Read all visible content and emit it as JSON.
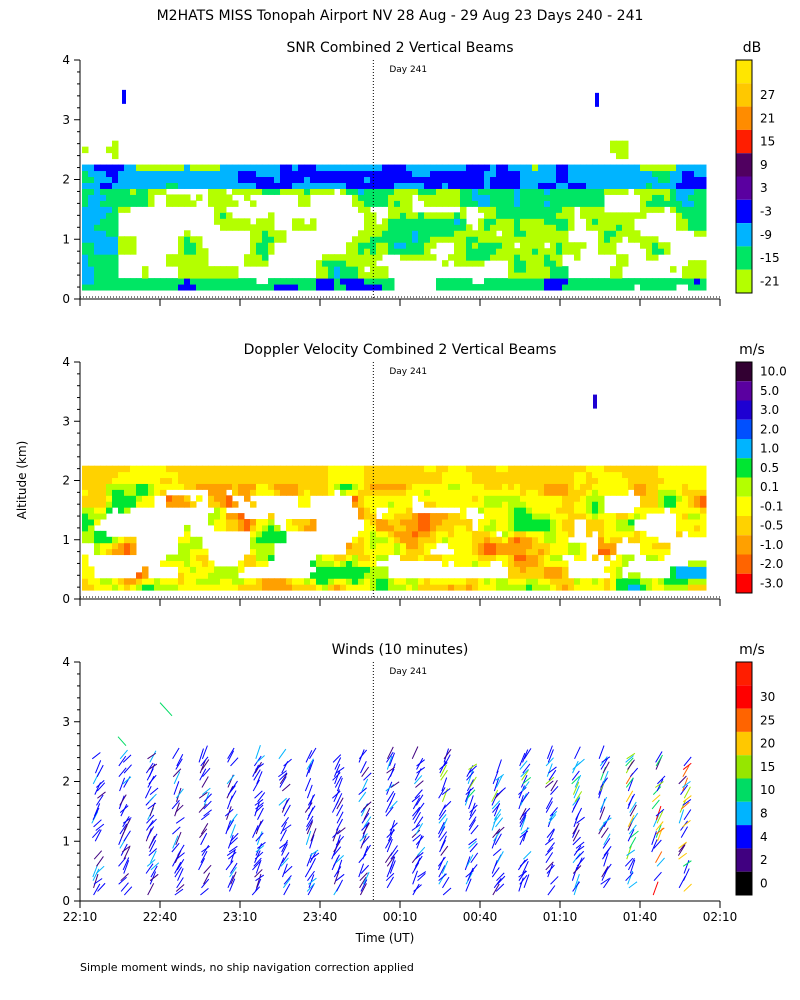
{
  "page": {
    "title": "M2HATS MISS Tonopah Airport NV  28 Aug - 29 Aug 23 Days 240 - 241",
    "y_axis_label": "Altitude (km)",
    "x_axis_label": "Time (UT)",
    "footnote": "Simple moment winds, no ship navigation correction applied",
    "day_marker_label": "Day 241"
  },
  "chart_data": [
    {
      "type": "heatmap",
      "title": "SNR Combined 2 Vertical Beams",
      "units": "dB",
      "ylabel": "Altitude (km)",
      "yticks": [
        "0",
        "1",
        "2",
        "3",
        "4"
      ],
      "ylim": [
        0,
        4
      ],
      "x_start": "22:10",
      "x_end": "02:10",
      "day_boundary": "00:00",
      "colorbar_labels": [
        "27",
        "21",
        "15",
        "9",
        "3",
        "-3",
        "-9",
        "-15",
        "-21"
      ],
      "colorbar_colors": [
        "#ffc800",
        "#ff8c00",
        "#ff1e00",
        "#500060",
        "#5a00a0",
        "#0000ff",
        "#00b4ff",
        "#00e664",
        "#b4ff00"
      ],
      "colorbar_top_color": "#ffe600",
      "layers": [
        {
          "from": 0.1,
          "to": 1.5,
          "dominant_dB": [
            -21,
            -15
          ],
          "coverage": "patchy"
        },
        {
          "from": 1.5,
          "to": 1.85,
          "dominant_dB": [
            -15,
            -9
          ],
          "coverage": "patchy"
        },
        {
          "from": 1.85,
          "to": 2.15,
          "dominant_dB": [
            -9,
            -3
          ],
          "coverage": "continuous"
        },
        {
          "from": 2.4,
          "to": 3.0,
          "dominant_dB": [
            -21,
            -15
          ],
          "coverage": "sparse"
        }
      ]
    },
    {
      "type": "heatmap",
      "title": "Doppler Velocity Combined 2 Vertical Beams",
      "units": "m/s",
      "ylim": [
        0,
        4
      ],
      "yticks": [
        "0",
        "1",
        "2",
        "3",
        "4"
      ],
      "x_start": "22:10",
      "x_end": "02:10",
      "day_boundary": "00:00",
      "colorbar_labels": [
        "10.0",
        "5.0",
        "3.0",
        "2.0",
        "1.0",
        "0.5",
        "0.1",
        "-0.1",
        "-0.5",
        "-1.0",
        "-2.0",
        "-3.0"
      ],
      "colorbar_colors": [
        "#320032",
        "#5a00a0",
        "#1e00d2",
        "#0050ff",
        "#00b4ff",
        "#00e632",
        "#b4ff00",
        "#ffff00",
        "#ffd200",
        "#ffa000",
        "#ff6400",
        "#ff0000"
      ],
      "layers": [
        {
          "from": 0.1,
          "to": 2.2,
          "dominant_m_s": [
            -0.5,
            0.5
          ],
          "coverage": "patchy"
        }
      ]
    },
    {
      "type": "wind_barbs",
      "title": "Winds (10 minutes)",
      "units": "m/s",
      "ylim": [
        0,
        4
      ],
      "yticks": [
        "0",
        "1",
        "2",
        "3",
        "4"
      ],
      "xticks": [
        "22:10",
        "22:40",
        "23:10",
        "23:40",
        "00:10",
        "00:40",
        "01:10",
        "01:40",
        "02:10"
      ],
      "day_boundary": "00:00",
      "colorbar_labels": [
        "30",
        "25",
        "20",
        "15",
        "10",
        "8",
        "4",
        "2",
        "0"
      ],
      "colorbar_colors": [
        "#ff0000",
        "#ff6400",
        "#ffc800",
        "#96e600",
        "#00dc64",
        "#00b4ff",
        "#0000ff",
        "#400080",
        "#000000"
      ],
      "colorbar_top_color": "#ff1e00",
      "profile_times_min": [
        10,
        20,
        30,
        40,
        50,
        60,
        70,
        80,
        90,
        100,
        110,
        120,
        130,
        140,
        150,
        160,
        170,
        180,
        190,
        200,
        210,
        220,
        230
      ],
      "dominant_speed_m_s": [
        4,
        8
      ],
      "dominant_direction": "northerly"
    }
  ]
}
